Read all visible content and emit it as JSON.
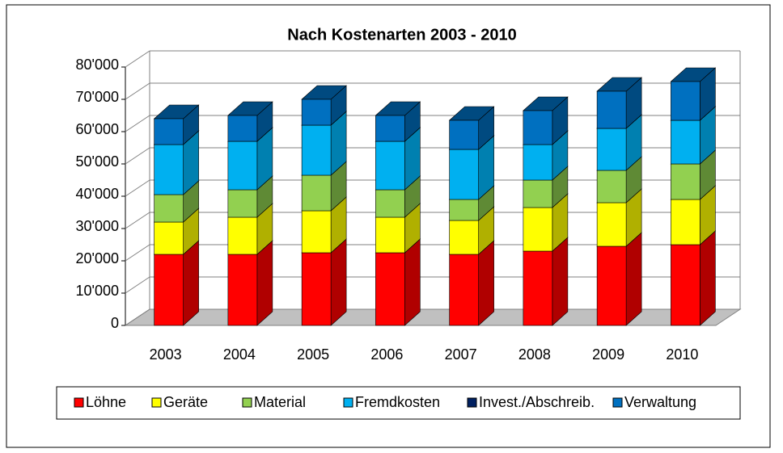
{
  "chart_data": {
    "type": "bar3d_stacked",
    "title": "Nach Kostenarten 2003 - 2010",
    "categories": [
      "2003",
      "2004",
      "2005",
      "2006",
      "2007",
      "2008",
      "2009",
      "2010"
    ],
    "series": [
      {
        "name": "Löhne",
        "color": "#ff0000",
        "side": "#b00000",
        "values": [
          22000,
          22000,
          22500,
          22500,
          22000,
          23000,
          24500,
          25000
        ]
      },
      {
        "name": "Geräte",
        "color": "#ffff00",
        "side": "#b0b000",
        "values": [
          10000,
          11500,
          13000,
          11000,
          10500,
          13500,
          13500,
          14000
        ]
      },
      {
        "name": "Material",
        "color": "#92d050",
        "side": "#5f8a35",
        "values": [
          8500,
          8500,
          11000,
          8500,
          6500,
          8500,
          10000,
          11000
        ]
      },
      {
        "name": "Fremdkosten",
        "color": "#00b0f0",
        "side": "#0080b0",
        "values": [
          15500,
          15000,
          15500,
          15000,
          15500,
          11000,
          13000,
          13500
        ]
      },
      {
        "name": "Invest./Abschreib.",
        "color": "#002060",
        "side": "#001540",
        "values": [
          0,
          0,
          0,
          0,
          0,
          0,
          0,
          0
        ]
      },
      {
        "name": "Verwaltung",
        "color": "#0070c0",
        "side": "#004a80",
        "values": [
          8000,
          8000,
          8000,
          8000,
          9000,
          10500,
          11500,
          12000
        ]
      }
    ],
    "ylim": [
      0,
      80000
    ],
    "yticks": [
      {
        "value": 0,
        "label": "0"
      },
      {
        "value": 10000,
        "label": "10'000"
      },
      {
        "value": 20000,
        "label": "20'000"
      },
      {
        "value": 30000,
        "label": "30'000"
      },
      {
        "value": 40000,
        "label": "40'000"
      },
      {
        "value": 50000,
        "label": "50'000"
      },
      {
        "value": 60000,
        "label": "60'000"
      },
      {
        "value": 70000,
        "label": "70'000"
      },
      {
        "value": 80000,
        "label": "80'000"
      }
    ],
    "grid": true
  }
}
